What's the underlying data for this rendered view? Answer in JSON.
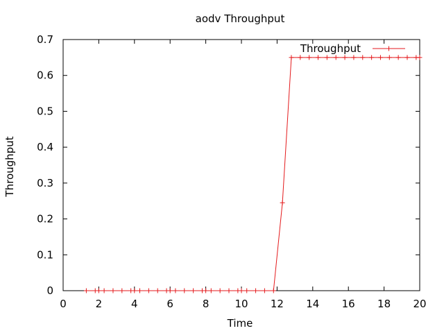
{
  "chart_data": {
    "type": "line",
    "title": "aodv Throughput",
    "xlabel": "Time",
    "ylabel": "Throughput",
    "xlim": [
      0,
      20
    ],
    "ylim": [
      0,
      0.7
    ],
    "xticks": [
      0,
      2,
      4,
      6,
      8,
      10,
      12,
      14,
      16,
      18,
      20
    ],
    "yticks": [
      0,
      0.1,
      0.2,
      0.3,
      0.4,
      0.5,
      0.6,
      0.7
    ],
    "grid": false,
    "legend_position": "top-right",
    "series": [
      {
        "name": "Throughput",
        "color": "#e41a1c",
        "marker": "plus",
        "x": [
          1.3,
          1.8,
          2.0,
          2.3,
          2.8,
          3.3,
          3.8,
          4.0,
          4.3,
          4.8,
          5.3,
          5.8,
          6.0,
          6.3,
          6.8,
          7.3,
          7.8,
          8.0,
          8.3,
          8.8,
          9.3,
          9.8,
          10.0,
          10.3,
          10.8,
          11.3,
          11.8,
          12.3,
          12.8,
          13.3,
          13.8,
          14.3,
          14.8,
          15.3,
          15.8,
          16.3,
          16.8,
          17.3,
          17.8,
          18.3,
          18.8,
          19.3,
          19.8,
          20.0
        ],
        "y": [
          0,
          0,
          0,
          0,
          0,
          0,
          0,
          0,
          0,
          0,
          0,
          0,
          0,
          0,
          0,
          0,
          0,
          0,
          0,
          0,
          0,
          0,
          0,
          0,
          0,
          0,
          0,
          0.245,
          0.65,
          0.65,
          0.65,
          0.65,
          0.65,
          0.65,
          0.65,
          0.65,
          0.65,
          0.65,
          0.65,
          0.65,
          0.65,
          0.65,
          0.65,
          0.65
        ]
      }
    ]
  }
}
